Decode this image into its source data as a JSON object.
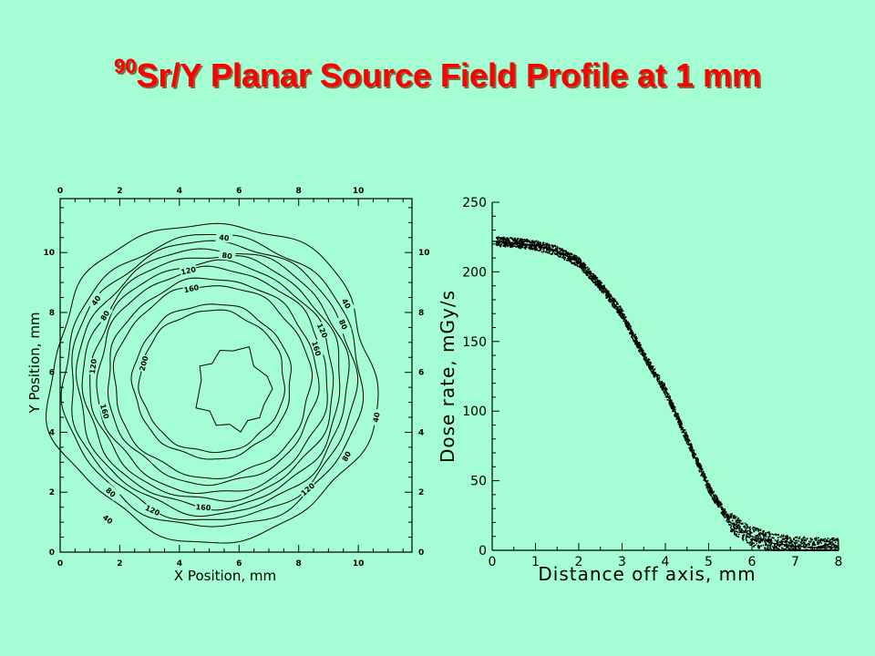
{
  "title": {
    "sup": "90",
    "text": "Sr/Y Planar Source Field Profile at 1 mm"
  },
  "chart_data": [
    {
      "type": "contour",
      "xlabel": "X Position, mm",
      "ylabel": "Y Position, mm",
      "xlim": [
        0,
        11.8
      ],
      "ylim": [
        0,
        11.8
      ],
      "xticks": [
        "0",
        "2",
        "4",
        "6",
        "8",
        "10"
      ],
      "yticks": [
        "0",
        "2",
        "4",
        "6",
        "8",
        "10"
      ],
      "center": [
        5.1,
        5.7
      ],
      "levels": [
        {
          "value": 40,
          "radius": 4.9
        },
        {
          "value": 80,
          "radius": 4.45
        },
        {
          "value": 120,
          "radius": 4.0
        },
        {
          "value": 160,
          "radius": 3.45
        },
        {
          "value": 200,
          "radius": 2.6
        }
      ],
      "contour_labels": [
        {
          "text": "40",
          "x": 5.5,
          "y": 10.5
        },
        {
          "text": "80",
          "x": 5.6,
          "y": 9.9
        },
        {
          "text": "120",
          "x": 4.3,
          "y": 9.4
        },
        {
          "text": "160",
          "x": 4.4,
          "y": 8.8
        },
        {
          "text": "40",
          "x": 1.2,
          "y": 8.4
        },
        {
          "text": "80",
          "x": 1.5,
          "y": 7.9
        },
        {
          "text": "40",
          "x": 9.6,
          "y": 8.3
        },
        {
          "text": "80",
          "x": 9.5,
          "y": 7.6
        },
        {
          "text": "120",
          "x": 8.8,
          "y": 7.4
        },
        {
          "text": "160",
          "x": 8.6,
          "y": 6.8
        },
        {
          "text": "120",
          "x": 1.1,
          "y": 6.2
        },
        {
          "text": "200",
          "x": 2.8,
          "y": 6.3
        },
        {
          "text": "160",
          "x": 1.5,
          "y": 4.7
        },
        {
          "text": "40",
          "x": 10.6,
          "y": 4.5
        },
        {
          "text": "80",
          "x": 9.6,
          "y": 3.2
        },
        {
          "text": "120",
          "x": 8.3,
          "y": 2.1
        },
        {
          "text": "80",
          "x": 1.7,
          "y": 2.0
        },
        {
          "text": "120",
          "x": 3.1,
          "y": 1.4
        },
        {
          "text": "160",
          "x": 4.8,
          "y": 1.5
        },
        {
          "text": "40",
          "x": 1.6,
          "y": 1.1
        }
      ]
    },
    {
      "type": "scatter",
      "xlabel": "Distance off axis, mm",
      "ylabel": "Dose rate, mGy/s",
      "xlim": [
        0,
        8
      ],
      "ylim": [
        0,
        250
      ],
      "xticks": [
        "0",
        "1",
        "2",
        "3",
        "4",
        "5",
        "6",
        "7",
        "8"
      ],
      "yticks": [
        "0",
        "50",
        "100",
        "150",
        "200",
        "250"
      ],
      "x": [
        0,
        0.5,
        1,
        1.5,
        2,
        2.5,
        3,
        3.5,
        4,
        4.5,
        5,
        5.5,
        6,
        6.5,
        7,
        7.5,
        8
      ],
      "y": [
        222,
        221,
        219,
        215,
        207,
        190,
        170,
        140,
        115,
        80,
        45,
        20,
        10,
        5,
        3,
        2,
        2
      ]
    }
  ]
}
